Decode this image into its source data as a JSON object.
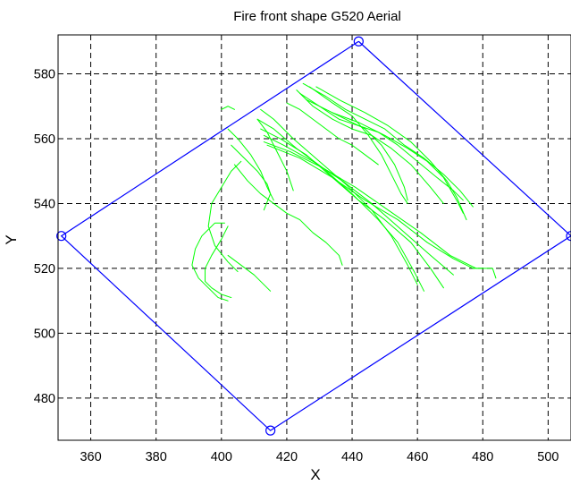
{
  "chart_data": {
    "type": "line",
    "title": "Fire front shape G520 Aerial",
    "xlabel": "X",
    "ylabel": "Y",
    "xlim": [
      350,
      507
    ],
    "ylim": [
      467,
      592
    ],
    "xticks": [
      360,
      380,
      400,
      420,
      440,
      460,
      480,
      500
    ],
    "yticks": [
      480,
      500,
      520,
      540,
      560,
      580
    ],
    "grid": true,
    "grid_style": "dashed",
    "colors": {
      "boundary": "#0000ff",
      "fronts": "#00ff00",
      "grid": "#000000"
    },
    "series": [
      {
        "kind": "boundary",
        "marker": "circle",
        "x": [
          442,
          507,
          415,
          351,
          442
        ],
        "y": [
          590,
          530,
          470,
          530,
          590
        ]
      },
      {
        "kind": "fire-front",
        "lines": [
          {
            "x": [
              401,
              398,
              394,
              392,
              391,
              393,
              396,
              399,
              402
            ],
            "y": [
              534,
              534,
              530,
              526,
              521,
              517,
              514,
              511,
              510
            ]
          },
          {
            "x": [
              402,
              400,
              397,
              395,
              395,
              397,
              400,
              403
            ],
            "y": [
              533,
              529,
              524,
              520,
              516,
              514,
              512,
              511
            ]
          },
          {
            "x": [
              406,
              403,
              400,
              397,
              396,
              398,
              402,
              405
            ],
            "y": [
              553,
              550,
              545,
              540,
              533,
              527,
              522,
              519
            ]
          },
          {
            "x": [
              402,
              405,
              409,
              412,
              414,
              416
            ],
            "y": [
              563,
              560,
              555,
              550,
              545,
              541
            ]
          },
          {
            "x": [
              403,
              407,
              411,
              414,
              415,
              413
            ],
            "y": [
              558,
              554,
              550,
              546,
              543,
              538
            ]
          },
          {
            "x": [
              411,
              414,
              417,
              420,
              422
            ],
            "y": [
              566,
              562,
              556,
              550,
              544
            ]
          },
          {
            "x": [
              404,
              408,
              412,
              416,
              420,
              424,
              428,
              432,
              436,
              437
            ],
            "y": [
              552,
              547,
              543,
              540,
              537,
              535,
              531,
              528,
              524,
              521
            ]
          },
          {
            "x": [
              402,
              406,
              410,
              412,
              415
            ],
            "y": [
              524,
              521,
              518,
              516,
              513
            ]
          },
          {
            "x": [
              400,
              402,
              404
            ],
            "y": [
              569,
              570,
              569
            ]
          },
          {
            "x": [
              412,
              416,
              422,
              430,
              438,
              446,
              452,
              457,
              460
            ],
            "y": [
              569,
              566,
              560,
              553,
              546,
              538,
              530,
              521,
              515
            ]
          },
          {
            "x": [
              411,
              416,
              423,
              431,
              440,
              448,
              454,
              459,
              462
            ],
            "y": [
              566,
              563,
              557,
              551,
              543,
              535,
              528,
              519,
              513
            ]
          },
          {
            "x": [
              412,
              418,
              426,
              434,
              442,
              450,
              458,
              464,
              468
            ],
            "y": [
              563,
              560,
              555,
              548,
              541,
              535,
              528,
              520,
              514
            ]
          },
          {
            "x": [
              413,
              419,
              428,
              437,
              446,
              455,
              464,
              471
            ],
            "y": [
              561,
              558,
              553,
              547,
              540,
              532,
              524,
              518
            ]
          },
          {
            "x": [
              413,
              421,
              431,
              441,
              451,
              461,
              470,
              478,
              483,
              484
            ],
            "y": [
              559,
              556,
              551,
              545,
              538,
              531,
              524,
              520,
              520,
              517
            ]
          },
          {
            "x": [
              414,
              424,
              434,
              444,
              454,
              463,
              471,
              477,
              480
            ],
            "y": [
              558,
              554,
              548,
              541,
              535,
              528,
              523,
              520,
              520
            ]
          },
          {
            "x": [
              423,
              428,
              434,
              440,
              446,
              452,
              458,
              464,
              468
            ],
            "y": [
              575,
              570,
              566,
              563,
              561,
              557,
              552,
              545,
              540
            ]
          },
          {
            "x": [
              424,
              430,
              436,
              442,
              448,
              454,
              460,
              466,
              471,
              474
            ],
            "y": [
              574,
              570,
              566,
              564,
              562,
              558,
              553,
              548,
              544,
              541
            ]
          },
          {
            "x": [
              425,
              432,
              438,
              444,
              450,
              456,
              462,
              468,
              473,
              477
            ],
            "y": [
              577,
              573,
              569,
              566,
              563,
              558,
              554,
              549,
              544,
              539
            ]
          },
          {
            "x": [
              426,
              432,
              438,
              444,
              449,
              453,
              456,
              457
            ],
            "y": [
              572,
              569,
              566,
              563,
              558,
              552,
              545,
              541
            ]
          },
          {
            "x": [
              427,
              434,
              440,
              445,
              449,
              452,
              455,
              457
            ],
            "y": [
              576,
              571,
              567,
              561,
              555,
              549,
              543,
              540
            ]
          },
          {
            "x": [
              429,
              436,
              444,
              451,
              458,
              464,
              469,
              472,
              475
            ],
            "y": [
              576,
              572,
              568,
              564,
              559,
              553,
              547,
              542,
              535
            ]
          },
          {
            "x": [
              434,
              442,
              450,
              457,
              463,
              468,
              472,
              474
            ],
            "y": [
              568,
              565,
              561,
              557,
              553,
              548,
              541,
              537
            ]
          },
          {
            "x": [
              420,
              424,
              428,
              432,
              436,
              440,
              444,
              448
            ],
            "y": [
              571,
              569,
              566,
              563,
              560,
              558,
              555,
              552
            ]
          }
        ]
      }
    ]
  }
}
